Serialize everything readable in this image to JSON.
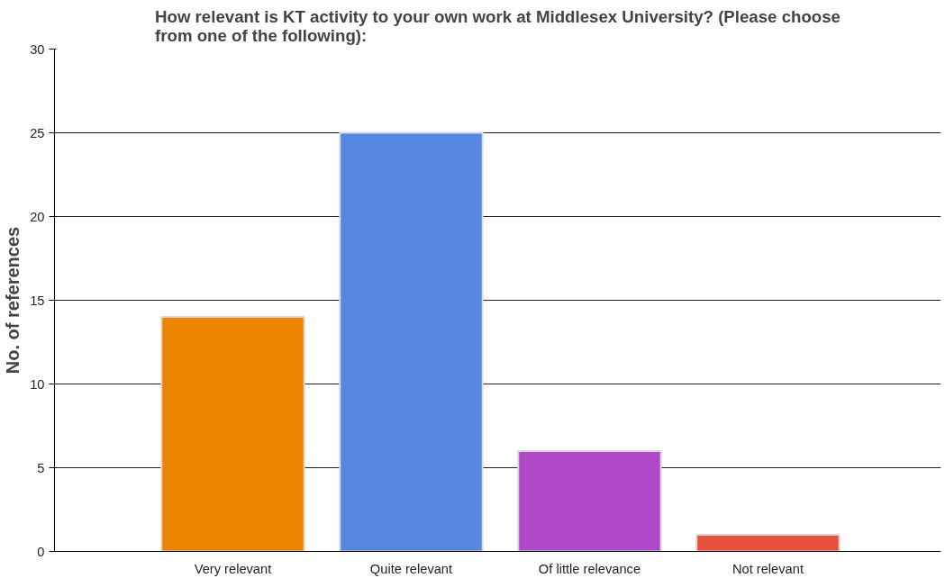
{
  "chart_data": {
    "type": "bar",
    "title": "How relevant is KT activity to your own work at Middlesex University? (Please choose\nfrom one of the following):",
    "ylabel": "No. of references",
    "categories": [
      "Very relevant",
      "Quite relevant",
      "Of little relevance",
      "Not relevant"
    ],
    "values": [
      14,
      25,
      6,
      1
    ],
    "colors": [
      "#ee8300",
      "#5686e0",
      "#b049c8",
      "#e8503a"
    ],
    "ylim": [
      0,
      30
    ],
    "yticks": [
      0,
      5,
      10,
      15,
      20,
      25,
      30
    ],
    "grid": "y"
  }
}
